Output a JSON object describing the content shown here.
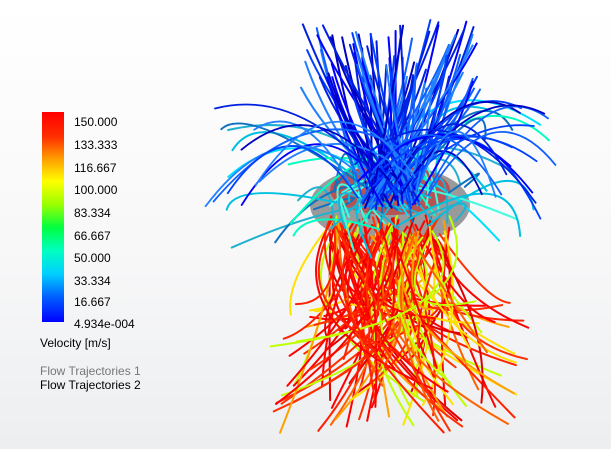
{
  "legend": {
    "labels": [
      "150.000",
      "133.333",
      "116.667",
      "100.000",
      "83.334",
      "66.667",
      "50.000",
      "33.334",
      "16.667",
      "4.934e-004"
    ],
    "title": "Velocity [m/s]"
  },
  "trajectories": [
    "Flow Trajectories 1",
    "Flow Trajectories 2"
  ]
}
